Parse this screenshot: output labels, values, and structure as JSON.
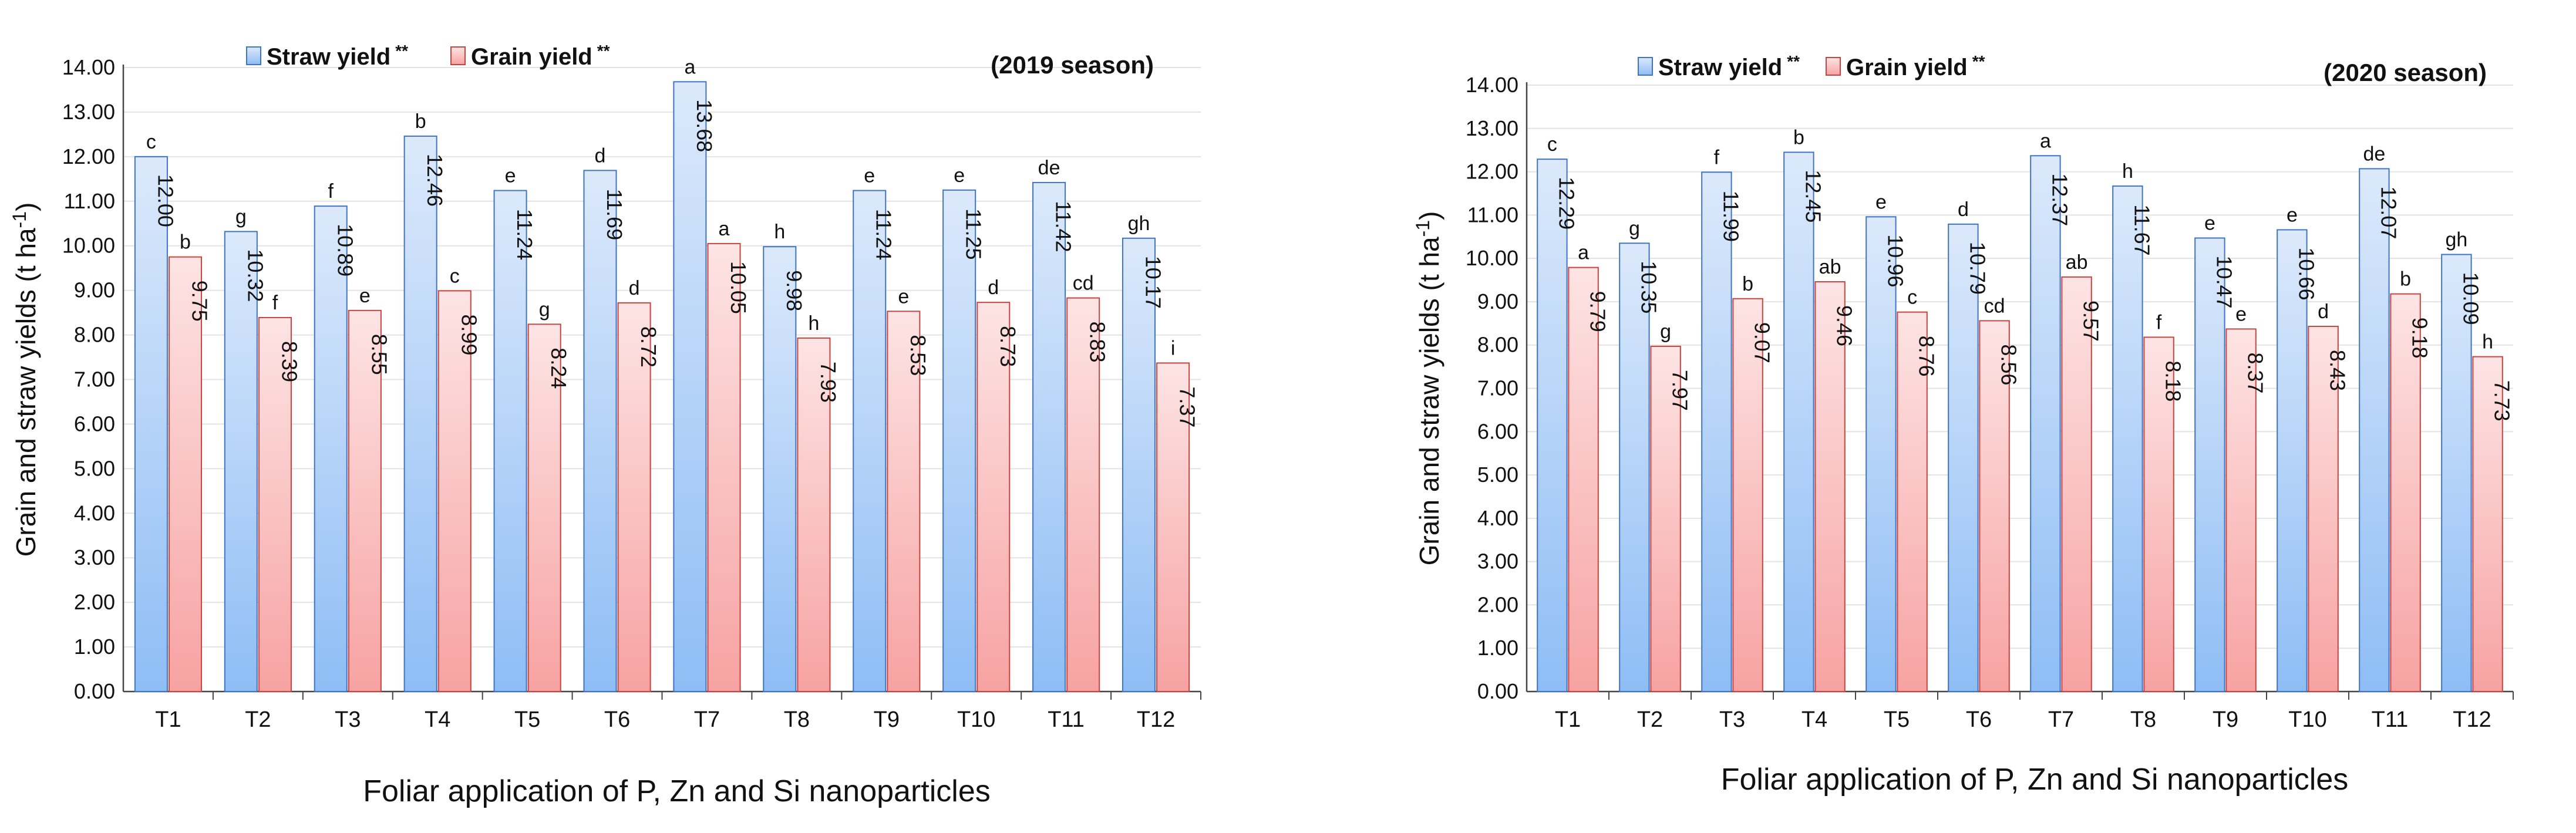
{
  "chart_data": [
    {
      "type": "bar",
      "season_label": "(2019 season)",
      "categories": [
        "T1",
        "T2",
        "T3",
        "T4",
        "T5",
        "T6",
        "T7",
        "T8",
        "T9",
        "T10",
        "T11",
        "T12"
      ],
      "series": [
        {
          "name": "Straw yield",
          "marker": "**",
          "color_top": "#dce9fb",
          "color_bottom": "#8ebdf5",
          "stroke": "#3f74c4",
          "values": [
            12.0,
            10.32,
            10.89,
            12.46,
            11.24,
            11.69,
            13.68,
            9.98,
            11.24,
            11.25,
            11.42,
            10.17
          ],
          "value_labels": [
            "12.00",
            "10.32",
            "10.89",
            "12.46",
            "11.24",
            "11.69",
            "13.68",
            "9.98",
            "11.24",
            "11.25",
            "11.42",
            "10.17"
          ],
          "letters": [
            "c",
            "g",
            "f",
            "b",
            "e",
            "d",
            "a",
            "h",
            "e",
            "e",
            "de",
            "gh"
          ]
        },
        {
          "name": "Grain yield",
          "marker": "**",
          "color_top": "#fde4e4",
          "color_bottom": "#f7a2a2",
          "stroke": "#c9443f",
          "values": [
            9.75,
            8.39,
            8.55,
            8.99,
            8.24,
            8.72,
            10.05,
            7.93,
            8.53,
            8.73,
            8.83,
            7.37
          ],
          "value_labels": [
            "9.75",
            "8.39",
            "8.55",
            "8.99",
            "8.24",
            "8.72",
            "10.05",
            "7.93",
            "8.53",
            "8.73",
            "8.83",
            "7.37"
          ],
          "letters": [
            "b",
            "f",
            "e",
            "c",
            "g",
            "d",
            "a",
            "h",
            "e",
            "d",
            "cd",
            "i"
          ]
        }
      ],
      "ylabel_main": "Grain and straw yields (t ha",
      "ylabel_sup": "-1",
      "ylabel_close": ")",
      "xlabel": "Foliar application of P, Zn and Si nanoparticles",
      "ylim": [
        0,
        14
      ],
      "ytick_step": 1,
      "ytick_labels": [
        "0.00",
        "1.00",
        "2.00",
        "3.00",
        "4.00",
        "5.00",
        "6.00",
        "7.00",
        "8.00",
        "9.00",
        "10.00",
        "11.00",
        "12.00",
        "13.00",
        "14.00"
      ]
    },
    {
      "type": "bar",
      "season_label": "(2020 season)",
      "categories": [
        "T1",
        "T2",
        "T3",
        "T4",
        "T5",
        "T6",
        "T7",
        "T8",
        "T9",
        "T10",
        "T11",
        "T12"
      ],
      "series": [
        {
          "name": "Straw yield",
          "marker": "**",
          "color_top": "#dce9fb",
          "color_bottom": "#8ebdf5",
          "stroke": "#3f74c4",
          "values": [
            12.29,
            10.35,
            11.99,
            12.45,
            10.96,
            10.79,
            12.37,
            11.67,
            10.47,
            10.66,
            12.07,
            10.09
          ],
          "value_labels": [
            "12.29",
            "10.35",
            "11.99",
            "12.45",
            "10.96",
            "10.79",
            "12.37",
            "11.67",
            "10.47",
            "10.66",
            "12.07",
            "10.09"
          ],
          "letters": [
            "c",
            "g",
            "f",
            "b",
            "e",
            "d",
            "a",
            "h",
            "e",
            "e",
            "de",
            "gh"
          ]
        },
        {
          "name": "Grain yield",
          "marker": "**",
          "color_top": "#fde4e4",
          "color_bottom": "#f7a2a2",
          "stroke": "#c9443f",
          "values": [
            9.79,
            7.97,
            9.07,
            9.46,
            8.76,
            8.56,
            9.57,
            8.18,
            8.37,
            8.43,
            9.18,
            7.73
          ],
          "value_labels": [
            "9.79",
            "7.97",
            "9.07",
            "9.46",
            "8.76",
            "8.56",
            "9.57",
            "8.18",
            "8.37",
            "8.43",
            "9.18",
            "7.73"
          ],
          "letters": [
            "a",
            "g",
            "b",
            "ab",
            "c",
            "cd",
            "ab",
            "f",
            "e",
            "d",
            "b",
            "h"
          ]
        }
      ],
      "ylabel_main": "Grain and straw yields (t ha",
      "ylabel_sup": "-1",
      "ylabel_close": ")",
      "xlabel": "Foliar application of P, Zn and Si nanoparticles",
      "ylim": [
        0,
        14
      ],
      "ytick_step": 1,
      "ytick_labels": [
        "0.00",
        "1.00",
        "2.00",
        "3.00",
        "4.00",
        "5.00",
        "6.00",
        "7.00",
        "8.00",
        "9.00",
        "10.00",
        "11.00",
        "12.00",
        "13.00",
        "14.00"
      ]
    }
  ]
}
